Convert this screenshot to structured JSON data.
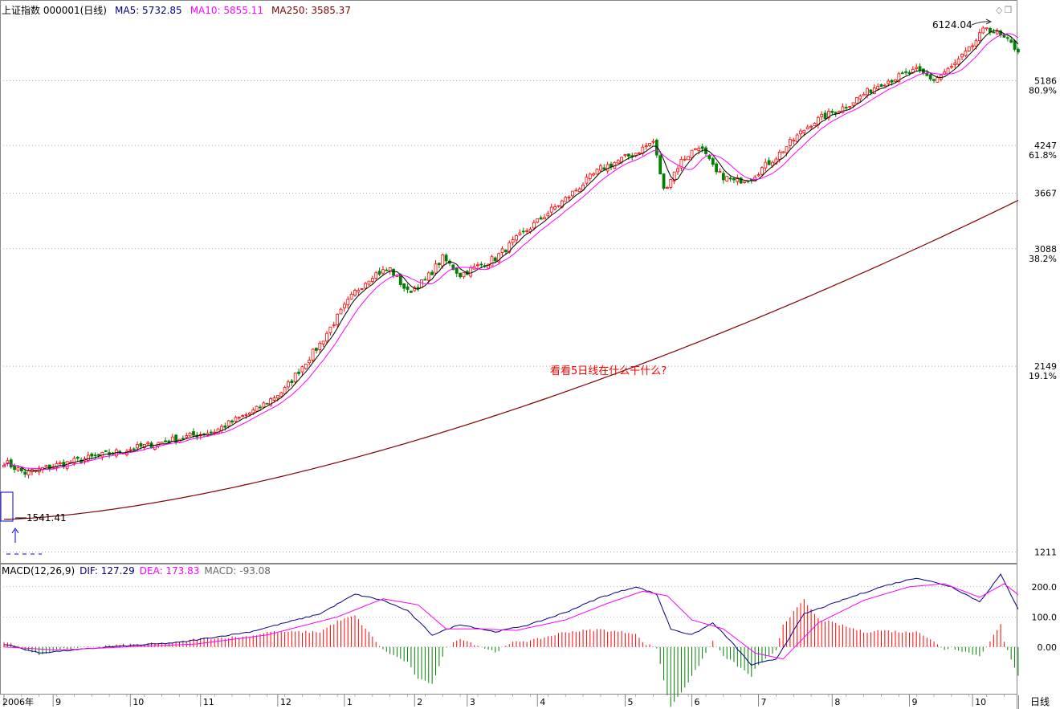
{
  "header": {
    "index_label": "上证指数 000001(日线)",
    "ma5_label": "MA5: 5732.85",
    "ma10_label": "MA10: 5855.11",
    "ma250_label": "MA250: 3585.37"
  },
  "macd_header": {
    "title": "MACD(12,26,9)",
    "dif_label": "DIF: 127.29",
    "dea_label": "DEA: 173.83",
    "macd_label": "MACD: -93.08"
  },
  "colors": {
    "up": "#ff0000",
    "down": "#008000",
    "ma5": "#000000",
    "ma10": "#ff00ff",
    "ma250": "#800000",
    "dif": "#000080",
    "dea": "#ff00ff",
    "grid": "#999999",
    "annotation": "#ff0000",
    "marker": "#0000cc"
  },
  "annotations": {
    "peak": "6124.04",
    "low": "1541.41",
    "note": "看看5日线在什么干什么?"
  },
  "period_button": "日线",
  "chart_data": [
    {
      "type": "candlestick",
      "title": "上证指数 000001(日线)",
      "y_ticks": [
        "1211",
        "2149",
        "3088",
        "3667",
        "4247",
        "5186"
      ],
      "y_tick_values": [
        1211,
        2149,
        3088,
        3667,
        4247,
        5186
      ],
      "pct_labels": [
        "19.1%",
        "38.2%",
        "61.8%",
        "80.9%"
      ],
      "pct_values": [
        2149,
        3088,
        4247,
        5186
      ],
      "ylim": [
        1180,
        6300
      ],
      "x_tick_labels": [
        "2006年",
        "9",
        "10",
        "11",
        "12",
        "1",
        "2",
        "3",
        "4",
        "5",
        "6",
        "7",
        "8",
        "9",
        "10"
      ],
      "x_tick_day_index": [
        0,
        14,
        36,
        56,
        78,
        97,
        117,
        132,
        152,
        177,
        196,
        215,
        236,
        258,
        276
      ],
      "anchors_close": [
        [
          0,
          1600
        ],
        [
          6,
          1545
        ],
        [
          14,
          1580
        ],
        [
          30,
          1640
        ],
        [
          45,
          1700
        ],
        [
          60,
          1760
        ],
        [
          72,
          1880
        ],
        [
          80,
          2000
        ],
        [
          90,
          2300
        ],
        [
          100,
          2700
        ],
        [
          105,
          2850
        ],
        [
          110,
          2900
        ],
        [
          115,
          2700
        ],
        [
          120,
          2800
        ],
        [
          125,
          3000
        ],
        [
          130,
          2850
        ],
        [
          140,
          3000
        ],
        [
          150,
          3300
        ],
        [
          160,
          3600
        ],
        [
          170,
          3950
        ],
        [
          180,
          4150
        ],
        [
          185,
          4300
        ],
        [
          188,
          3700
        ],
        [
          193,
          4050
        ],
        [
          198,
          4250
        ],
        [
          203,
          3900
        ],
        [
          208,
          3800
        ],
        [
          213,
          3850
        ],
        [
          220,
          4100
        ],
        [
          230,
          4550
        ],
        [
          240,
          4800
        ],
        [
          250,
          5150
        ],
        [
          260,
          5350
        ],
        [
          265,
          5200
        ],
        [
          270,
          5400
        ],
        [
          275,
          5700
        ],
        [
          280,
          6124
        ],
        [
          285,
          5900
        ],
        [
          289,
          5700
        ]
      ],
      "ma250_range": [
        1340,
        3585.37
      ],
      "peak_value": 6124.04,
      "low_value": 1541.41
    },
    {
      "type": "macd",
      "title": "MACD(12,26,9)",
      "y_ticks": [
        "200.0",
        "100.0",
        "0.00"
      ],
      "y_tick_values": [
        200,
        100,
        0
      ],
      "ylim": [
        -150,
        250
      ],
      "dif_anchors": [
        [
          0,
          10
        ],
        [
          10,
          -20
        ],
        [
          30,
          0
        ],
        [
          50,
          15
        ],
        [
          70,
          50
        ],
        [
          90,
          110
        ],
        [
          100,
          175
        ],
        [
          108,
          155
        ],
        [
          115,
          120
        ],
        [
          122,
          40
        ],
        [
          130,
          75
        ],
        [
          140,
          50
        ],
        [
          150,
          75
        ],
        [
          160,
          115
        ],
        [
          170,
          165
        ],
        [
          180,
          200
        ],
        [
          186,
          175
        ],
        [
          190,
          60
        ],
        [
          196,
          40
        ],
        [
          202,
          80
        ],
        [
          207,
          20
        ],
        [
          213,
          -60
        ],
        [
          220,
          -40
        ],
        [
          228,
          110
        ],
        [
          240,
          160
        ],
        [
          250,
          200
        ],
        [
          260,
          230
        ],
        [
          270,
          200
        ],
        [
          278,
          150
        ],
        [
          284,
          240
        ],
        [
          289,
          127.29
        ]
      ],
      "dea_anchors": [
        [
          0,
          0
        ],
        [
          15,
          -10
        ],
        [
          35,
          0
        ],
        [
          55,
          10
        ],
        [
          75,
          40
        ],
        [
          95,
          100
        ],
        [
          108,
          160
        ],
        [
          118,
          140
        ],
        [
          126,
          60
        ],
        [
          136,
          60
        ],
        [
          146,
          55
        ],
        [
          160,
          90
        ],
        [
          172,
          145
        ],
        [
          182,
          185
        ],
        [
          189,
          170
        ],
        [
          196,
          90
        ],
        [
          205,
          60
        ],
        [
          214,
          -20
        ],
        [
          222,
          -40
        ],
        [
          232,
          80
        ],
        [
          245,
          155
        ],
        [
          258,
          200
        ],
        [
          268,
          210
        ],
        [
          278,
          165
        ],
        [
          285,
          210
        ],
        [
          289,
          173.83
        ]
      ]
    }
  ]
}
